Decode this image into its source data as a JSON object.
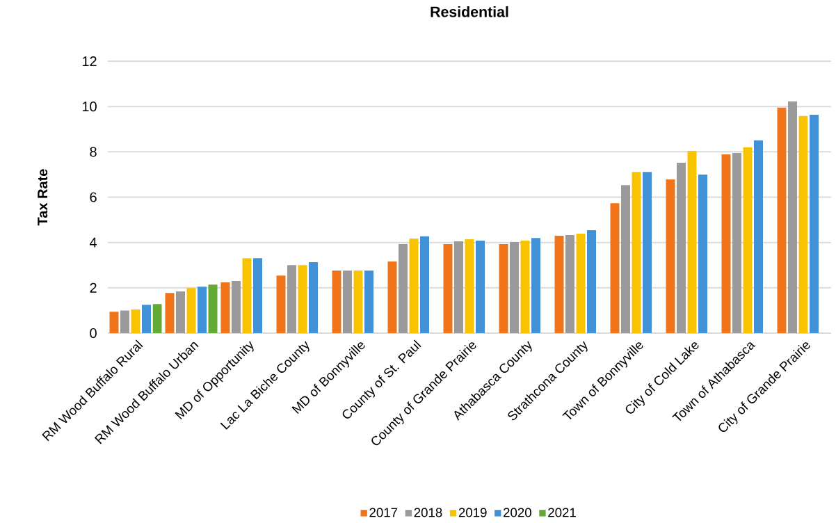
{
  "chart_data": {
    "type": "bar",
    "title": "Residential",
    "ylabel": "Tax Rate",
    "categories": [
      "RM Wood Buffalo Rural",
      "RM Wood Buffalo Urban",
      "MD of Opportunity",
      "Lac La Biche County",
      "MD of Bonnyville",
      "County of St. Paul",
      "County of Grande Prairie",
      "Athabasca County",
      "Strathcona County",
      "Town of Bonnyville",
      "City of Cold Lake",
      "Town of Athabasca",
      "City of Grande Prairie"
    ],
    "series": [
      {
        "name": "2017",
        "color": "#f0741a",
        "values": [
          0.94,
          1.77,
          2.24,
          2.54,
          2.76,
          3.16,
          3.93,
          3.93,
          4.3,
          5.73,
          6.78,
          7.89,
          9.95
        ]
      },
      {
        "name": "2018",
        "color": "#9a9a9a",
        "values": [
          1.0,
          1.84,
          2.3,
          3.0,
          2.76,
          3.93,
          4.05,
          4.02,
          4.33,
          6.53,
          7.52,
          7.95,
          10.23
        ]
      },
      {
        "name": "2019",
        "color": "#f8c400",
        "values": [
          1.04,
          1.99,
          3.31,
          3.0,
          2.76,
          4.17,
          4.14,
          4.08,
          4.39,
          7.11,
          8.04,
          8.2,
          9.58
        ]
      },
      {
        "name": "2020",
        "color": "#4290d6",
        "values": [
          1.25,
          2.05,
          3.31,
          3.13,
          2.76,
          4.27,
          4.08,
          4.2,
          4.54,
          7.11,
          7.0,
          8.51,
          9.64
        ]
      },
      {
        "name": "2021",
        "color": "#62a935",
        "values": [
          1.28,
          2.14,
          null,
          null,
          null,
          null,
          null,
          null,
          null,
          null,
          null,
          null,
          null
        ]
      }
    ],
    "ylim": [
      0,
      12
    ],
    "yticks": [
      0,
      2,
      4,
      6,
      8,
      10,
      12
    ],
    "grid": "y",
    "legend": "bottom"
  }
}
